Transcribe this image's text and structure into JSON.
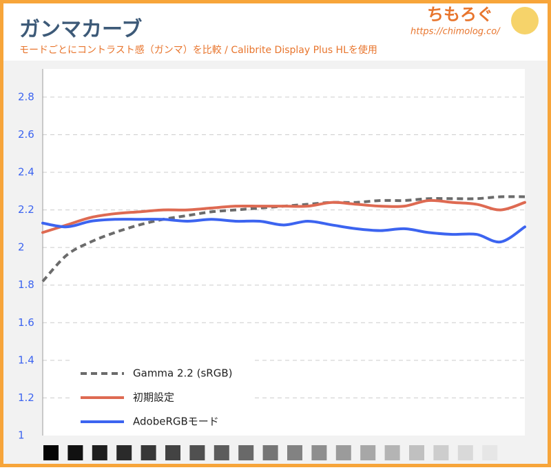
{
  "chart_data": {
    "type": "line",
    "title": "ガンマカーブ",
    "subtitle": "モードごとにコントラスト感（ガンマ）を比較 / Calibrite Display Plus HLを使用",
    "logo": "ちもろぐ",
    "url": "https://chimolog.co/",
    "categories": [
      null,
      null,
      null,
      null,
      null,
      null,
      null,
      null,
      null,
      null,
      null,
      null,
      null,
      null,
      null,
      null,
      null,
      null,
      null,
      null,
      null
    ],
    "series": [
      {
        "name": "Gamma 2.2 (sRGB)",
        "color": "#6b6b6b",
        "dashed": true,
        "values": [
          1.82,
          1.96,
          2.03,
          2.08,
          2.12,
          2.15,
          2.17,
          2.19,
          2.2,
          2.21,
          2.22,
          2.23,
          2.24,
          2.24,
          2.25,
          2.25,
          2.26,
          2.26,
          2.26,
          2.27,
          2.27
        ]
      },
      {
        "name": "初期設定",
        "color": "#de6a52",
        "values": [
          2.08,
          2.12,
          2.16,
          2.18,
          2.19,
          2.2,
          2.2,
          2.21,
          2.22,
          2.22,
          2.22,
          2.22,
          2.24,
          2.23,
          2.22,
          2.22,
          2.25,
          2.24,
          2.23,
          2.2,
          2.24
        ]
      },
      {
        "name": "AdobeRGBモード",
        "color": "#3c64f0",
        "values": [
          2.13,
          2.11,
          2.14,
          2.15,
          2.15,
          2.15,
          2.14,
          2.15,
          2.14,
          2.14,
          2.12,
          2.14,
          2.12,
          2.1,
          2.09,
          2.1,
          2.08,
          2.07,
          2.07,
          2.03,
          2.11
        ]
      }
    ],
    "ylim": [
      1,
      2.95
    ],
    "yticks": [
      1,
      1.2,
      1.4,
      1.6,
      1.8,
      2,
      2.2,
      2.4,
      2.6,
      2.8
    ],
    "grid": true,
    "legend": "lower-left"
  }
}
